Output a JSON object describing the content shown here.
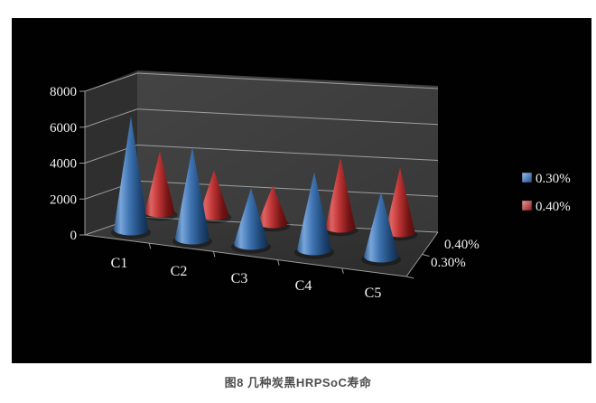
{
  "page": {
    "background": "#ffffff"
  },
  "figure": {
    "caption": "图8 几种炭黑HRPSoC寿命",
    "panel_background": "#010101"
  },
  "chart_data": {
    "type": "bar",
    "variant": "3d-cone-columns",
    "categories": [
      "C1",
      "C2",
      "C3",
      "C4",
      "C5"
    ],
    "series": [
      {
        "name": "0.30%",
        "color": "#3f74b2",
        "values": [
          6300,
          5100,
          3100,
          4300,
          3600
        ]
      },
      {
        "name": "0.40%",
        "color": "#c03636",
        "values": [
          3400,
          2500,
          2100,
          3900,
          3600
        ]
      }
    ],
    "ylim": [
      0,
      8000
    ],
    "y_ticks": [
      0,
      2000,
      4000,
      6000,
      8000
    ],
    "y_tick_labels": [
      "0",
      "2000",
      "4000",
      "6000",
      "8000"
    ],
    "depth_axis_labels": [
      "0.40%",
      "0.30%"
    ],
    "legend": {
      "position": "right",
      "entries": [
        "0.30%",
        "0.40%"
      ]
    },
    "grid": true,
    "colors": {
      "background": "#010101",
      "back_wall": "#3e3e3e",
      "left_wall": "#2f2f2f",
      "floor": "#323232",
      "gridline": "#b0b0b0",
      "axis_line": "#9a9a9a",
      "text": "#f2f2f2"
    }
  }
}
